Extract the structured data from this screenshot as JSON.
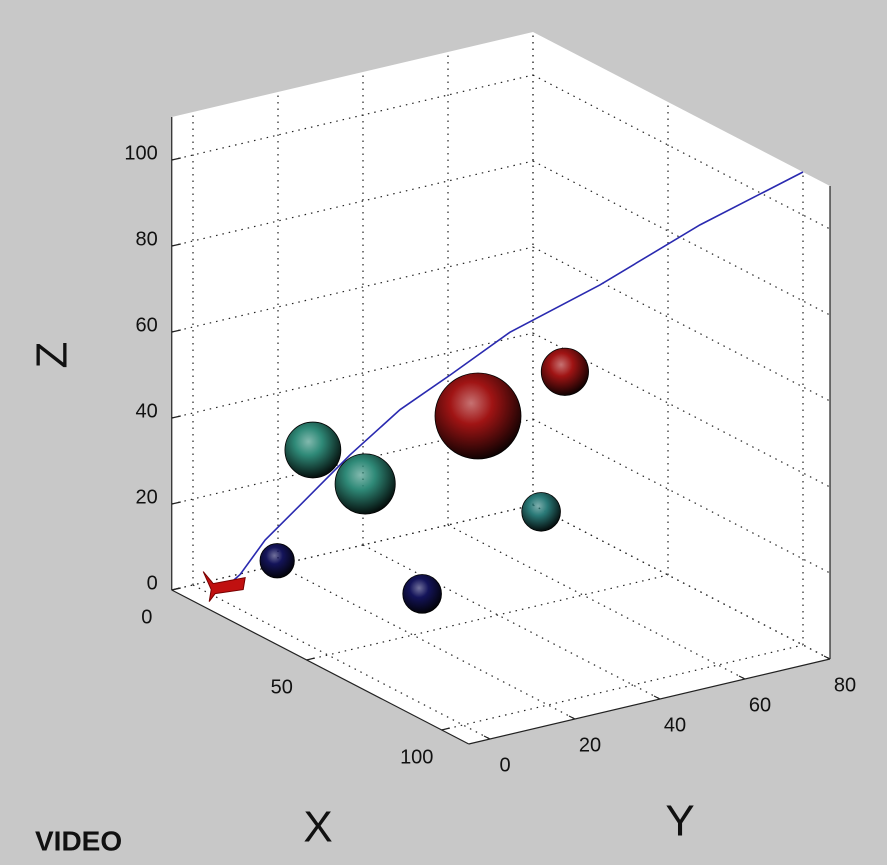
{
  "chart_data": {
    "type": "scatter3d",
    "xlabel": "X",
    "ylabel": "Y",
    "zlabel": "Z",
    "xlim": [
      0,
      110
    ],
    "ylim": [
      -5,
      80
    ],
    "zlim": [
      0,
      110
    ],
    "xticks": [
      0,
      50,
      100
    ],
    "yticks": [
      0,
      20,
      40,
      60,
      80
    ],
    "zticks": [
      0,
      20,
      40,
      60,
      80,
      100
    ],
    "grid": true,
    "points": {
      "x": [
        20,
        40,
        30,
        20,
        40,
        20,
        60
      ],
      "y": [
        15.5,
        15.1,
        48,
        74.8,
        56.5,
        7.1,
        15.8
      ],
      "z": [
        34.3,
        33,
        37.9,
        38.7,
        16.9,
        10.5,
        13.8
      ],
      "r": [
        6.5,
        7,
        10,
        5.5,
        4.5,
        4,
        4.5
      ],
      "colors": [
        "#2f8a78",
        "#2f8a78",
        "#a01414",
        "#a01414",
        "#2a7a78",
        "#14145a",
        "#14145a"
      ]
    },
    "trajectory": {
      "color": "#2a2ab0",
      "x": [
        5,
        7.5,
        11.6,
        17.3,
        25.5,
        33.7,
        41.9,
        51.7,
        66.5,
        82.8,
        100
      ],
      "y": [
        4.4,
        6.3,
        9.6,
        14.2,
        20.7,
        27.3,
        33.9,
        41.7,
        53.5,
        66.7,
        80
      ],
      "z": [
        0,
        3.4,
        12,
        20.9,
        33.7,
        45.4,
        54.6,
        65.9,
        79,
        95.2,
        110
      ]
    }
  },
  "caption": "VIDEO"
}
